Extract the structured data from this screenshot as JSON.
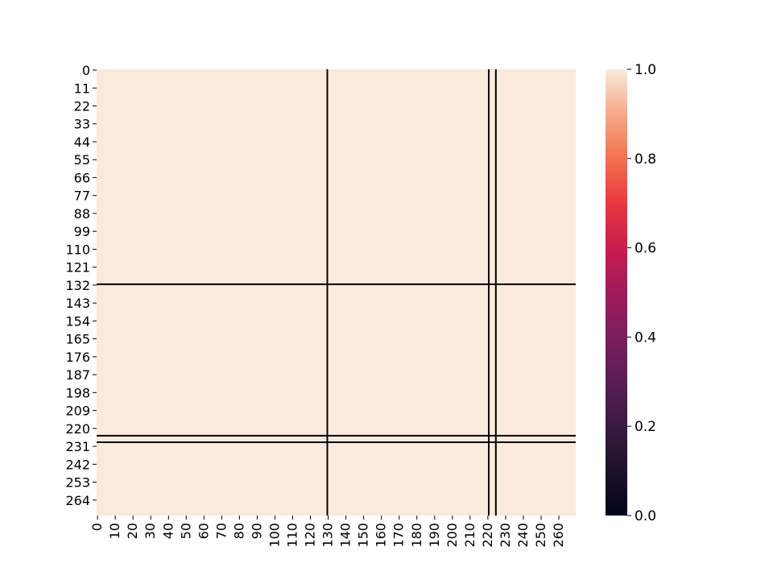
{
  "chart_data": {
    "type": "heatmap",
    "title": "",
    "xlabel": "",
    "ylabel": "",
    "n_cols": 270,
    "n_rows": 274,
    "x_ticks": [
      0,
      10,
      20,
      30,
      40,
      50,
      60,
      70,
      80,
      90,
      100,
      110,
      120,
      130,
      140,
      150,
      160,
      170,
      180,
      190,
      200,
      210,
      220,
      230,
      240,
      250,
      260
    ],
    "y_ticks": [
      0,
      11,
      22,
      33,
      44,
      55,
      66,
      77,
      88,
      99,
      110,
      121,
      132,
      143,
      154,
      165,
      176,
      187,
      198,
      209,
      220,
      231,
      242,
      253,
      264
    ],
    "value_range": [
      0.0,
      1.0
    ],
    "cell_value": 1.0,
    "colorbar": {
      "ticks": [
        0.0,
        0.2,
        0.4,
        0.6,
        0.8,
        1.0
      ],
      "labels": [
        "0.0",
        "0.2",
        "0.4",
        "0.6",
        "0.8",
        "1.0"
      ],
      "colormap": "rocket"
    },
    "vertical_lines_at_col": [
      130,
      221,
      225
    ],
    "horizontal_lines_at_row": [
      132,
      225,
      229
    ],
    "line_color": "#000000",
    "cell_color": "#faeadc"
  }
}
